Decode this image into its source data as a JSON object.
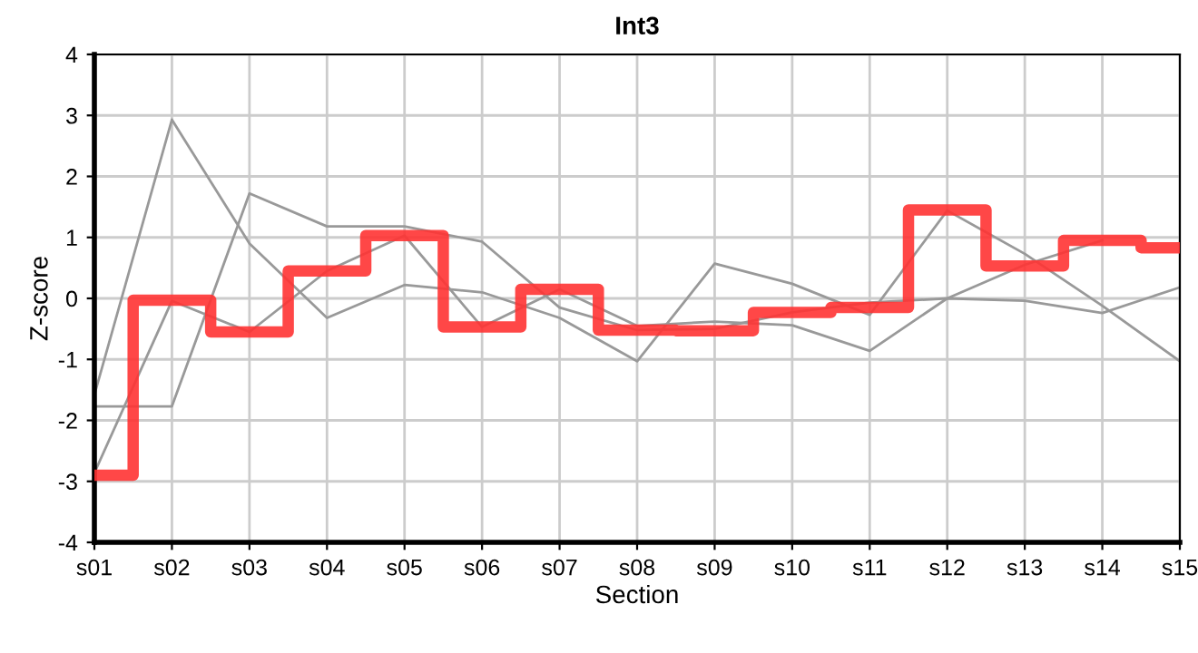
{
  "chart_data": {
    "type": "line",
    "title": "Int3",
    "xlabel": "Section",
    "ylabel": "Z-score",
    "categories": [
      "s01",
      "s02",
      "s03",
      "s04",
      "s05",
      "s06",
      "s07",
      "s08",
      "s09",
      "s10",
      "s11",
      "s12",
      "s13",
      "s14",
      "s15"
    ],
    "ylim": [
      -4,
      4
    ],
    "yticks": [
      -4,
      -3,
      -2,
      -1,
      0,
      1,
      2,
      3,
      4
    ],
    "grid": true,
    "legend": false,
    "marker": "none",
    "series": [
      {
        "color": "#999999",
        "values": [
          -2.86,
          -0.04,
          -0.55,
          0.45,
          1.03,
          -0.47,
          0.15,
          -0.45,
          -0.38,
          -0.44,
          -0.86,
          0.0,
          0.55,
          0.95,
          null
        ]
      },
      {
        "color": "#999999",
        "values": [
          -1.58,
          2.93,
          0.9,
          -0.32,
          0.22,
          0.1,
          -0.32,
          -1.03,
          0.57,
          0.24,
          -0.27,
          1.44,
          0.73,
          -0.12,
          -1.03
        ]
      },
      {
        "color": "#999999",
        "values": [
          -1.77,
          -1.77,
          1.72,
          1.18,
          1.18,
          0.93,
          -0.15,
          -0.52,
          -0.5,
          -0.23,
          -0.07,
          0.0,
          -0.04,
          -0.24,
          0.18
        ]
      },
      {
        "type": "step",
        "color": "#ff3333",
        "values": [
          -2.9,
          -0.03,
          -0.55,
          0.45,
          1.03,
          -0.47,
          0.15,
          -0.52,
          -0.53,
          -0.23,
          -0.15,
          1.45,
          0.53,
          0.95,
          0.83
        ]
      }
    ]
  }
}
